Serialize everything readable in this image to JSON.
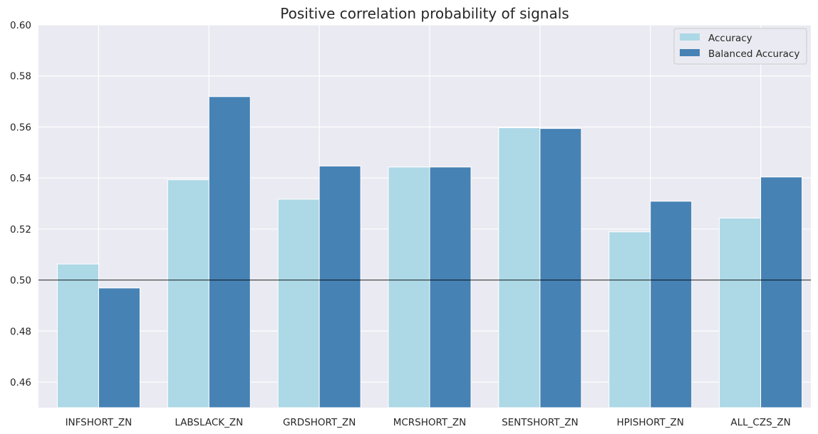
{
  "chart_data": {
    "type": "bar",
    "title": "Positive correlation probability of signals",
    "xlabel": "",
    "ylabel": "",
    "categories": [
      "INFSHORT_ZN",
      "LABSLACK_ZN",
      "GRDSHORT_ZN",
      "MCRSHORT_ZN",
      "SENTSHORT_ZN",
      "HPISHORT_ZN",
      "ALL_CZS_ZN"
    ],
    "series": [
      {
        "name": "Accuracy",
        "color": "#add8e6",
        "values": [
          0.5063,
          0.5393,
          0.5317,
          0.5443,
          0.5597,
          0.5189,
          0.5243
        ]
      },
      {
        "name": "Balanced Accuracy",
        "color": "#4682b4",
        "values": [
          0.4969,
          0.5719,
          0.5447,
          0.5443,
          0.5594,
          0.5309,
          0.5404
        ]
      }
    ],
    "ylim": [
      0.45,
      0.6
    ],
    "yticks": [
      0.46,
      0.48,
      0.5,
      0.52,
      0.54,
      0.56,
      0.58,
      0.6
    ],
    "ytick_labels": [
      "0.46",
      "0.48",
      "0.50",
      "0.52",
      "0.54",
      "0.56",
      "0.58",
      "0.60"
    ],
    "reference_line": 0.5,
    "grid": true,
    "legend_position": "top-right",
    "background_color": "#eaeaf2",
    "grid_color": "#ffffff",
    "reference_line_color": "#000000"
  }
}
